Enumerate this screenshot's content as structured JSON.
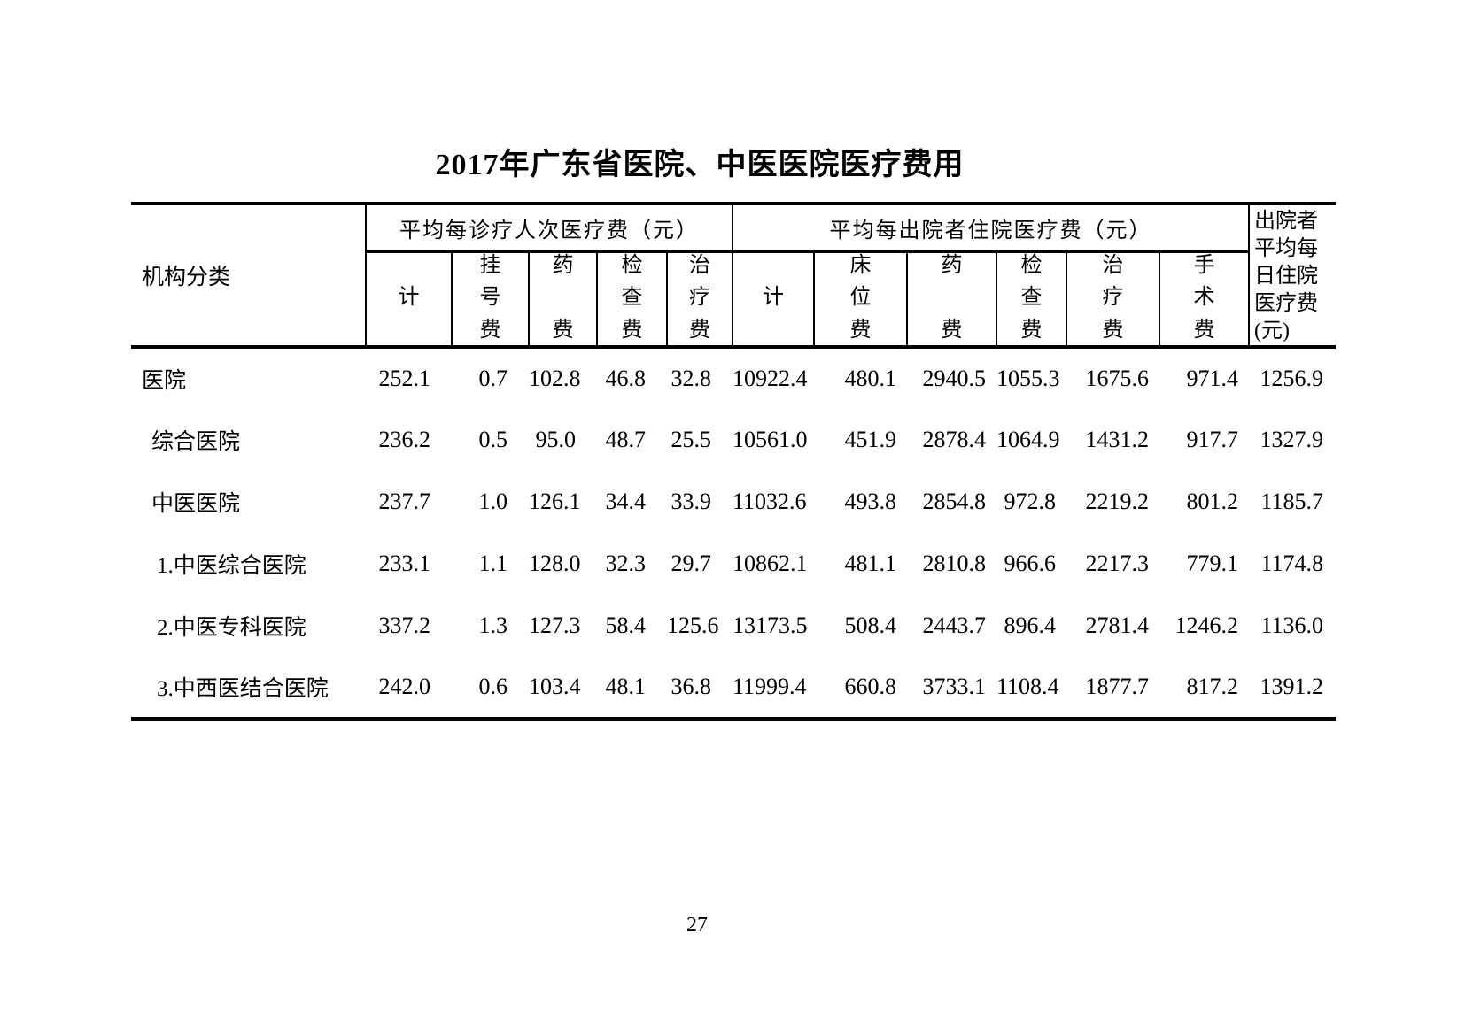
{
  "title": "2017年广东省医院、中医医院医疗费用",
  "table": {
    "row_header": "机构分类",
    "groups": [
      {
        "label": "平均每诊疗人次医疗费（元）",
        "columns": [
          "计",
          "挂号费",
          "药费",
          "检查费",
          "治疗费"
        ]
      },
      {
        "label": "平均每出院者住院医疗费（元）",
        "columns": [
          "计",
          "床位费",
          "药费",
          "检查费",
          "治疗费",
          "手术费"
        ]
      }
    ],
    "last_column": "出院者\n平均每\n日住院\n医疗费\n(元)",
    "rows": [
      {
        "label": "医院",
        "indent": 0,
        "values": [
          "252.1",
          "0.7",
          "102.8",
          "46.8",
          "32.8",
          "10922.4",
          "480.1",
          "2940.5",
          "1055.3",
          "1675.6",
          "971.4",
          "1256.9"
        ]
      },
      {
        "label": "综合医院",
        "indent": 1,
        "values": [
          "236.2",
          "0.5",
          "95.0",
          "48.7",
          "25.5",
          "10561.0",
          "451.9",
          "2878.4",
          "1064.9",
          "1431.2",
          "917.7",
          "1327.9"
        ]
      },
      {
        "label": "中医医院",
        "indent": 1,
        "values": [
          "237.7",
          "1.0",
          "126.1",
          "34.4",
          "33.9",
          "11032.6",
          "493.8",
          "2854.8",
          "972.8",
          "2219.2",
          "801.2",
          "1185.7"
        ]
      },
      {
        "label": "1.中医综合医院",
        "indent": 2,
        "values": [
          "233.1",
          "1.1",
          "128.0",
          "32.3",
          "29.7",
          "10862.1",
          "481.1",
          "2810.8",
          "966.6",
          "2217.3",
          "779.1",
          "1174.8"
        ]
      },
      {
        "label": "2.中医专科医院",
        "indent": 2,
        "values": [
          "337.2",
          "1.3",
          "127.3",
          "58.4",
          "125.6",
          "13173.5",
          "508.4",
          "2443.7",
          "896.4",
          "2781.4",
          "1246.2",
          "1136.0"
        ]
      },
      {
        "label": "3.中西医结合医院",
        "indent": 2,
        "values": [
          "242.0",
          "0.6",
          "103.4",
          "48.1",
          "36.8",
          "11999.4",
          "660.8",
          "3733.1",
          "1108.4",
          "1877.7",
          "817.2",
          "1391.2"
        ]
      }
    ]
  },
  "page_number": "27"
}
